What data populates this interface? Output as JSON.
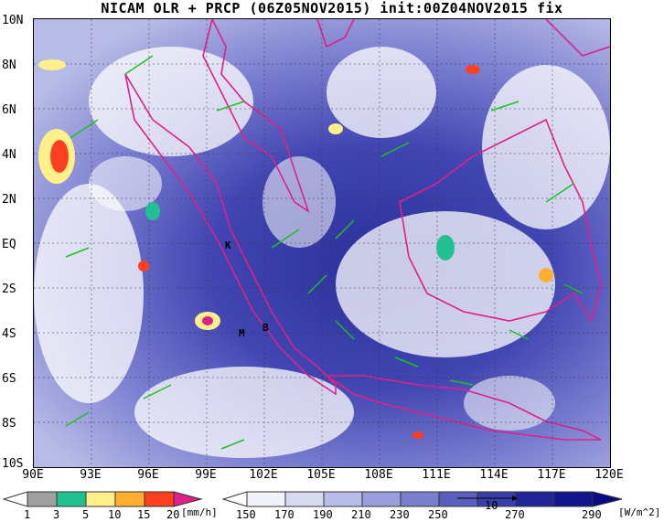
{
  "title": "NICAM OLR + PRCP (06Z05NOV2015) init:00Z04NOV2015 fix",
  "lat_labels": [
    "10N",
    "8N",
    "6N",
    "4N",
    "2N",
    "EQ",
    "2S",
    "4S",
    "6S",
    "8S",
    "10S"
  ],
  "lon_labels": [
    "90E",
    "93E",
    "96E",
    "99E",
    "102E",
    "105E",
    "108E",
    "111E",
    "114E",
    "117E",
    "120E"
  ],
  "city_markers": [
    "K",
    "M",
    "B"
  ],
  "vector_ref_label": "10",
  "precip_colorbar": {
    "unit": "[mm/h]",
    "labels": [
      "1",
      "3",
      "5",
      "10",
      "15",
      "20"
    ],
    "colors": [
      "#a0a0a0",
      "#20c090",
      "#fff08a",
      "#ffb030",
      "#ff4020",
      "#e0208a"
    ]
  },
  "olr_colorbar": {
    "unit": "[W/m^2]",
    "labels": [
      "150",
      "170",
      "190",
      "210",
      "230",
      "250",
      "270",
      "290"
    ],
    "colors": [
      "#ffffff",
      "#e4e4f6",
      "#c8caee",
      "#aaaee4",
      "#8c90d8",
      "#6c70c8",
      "#4e52b8",
      "#3438a8",
      "#1e2296",
      "#0e1288"
    ]
  }
}
